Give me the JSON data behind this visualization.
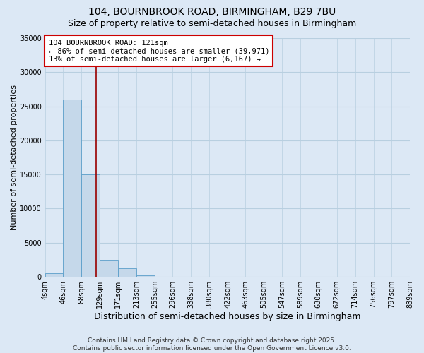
{
  "title": "104, BOURNBROOK ROAD, BIRMINGHAM, B29 7BU",
  "subtitle": "Size of property relative to semi-detached houses in Birmingham",
  "xlabel": "Distribution of semi-detached houses by size in Birmingham",
  "ylabel": "Number of semi-detached properties",
  "footer_line1": "Contains HM Land Registry data © Crown copyright and database right 2025.",
  "footer_line2": "Contains public sector information licensed under the Open Government Licence v3.0.",
  "annotation_line1": "104 BOURNBROOK ROAD: 121sqm",
  "annotation_line2": "← 86% of semi-detached houses are smaller (39,971)",
  "annotation_line3": "13% of semi-detached houses are larger (6,167) →",
  "property_size": 121,
  "bins": [
    4,
    46,
    88,
    129,
    171,
    213,
    255,
    296,
    338,
    380,
    422,
    463,
    505,
    547,
    589,
    630,
    672,
    714,
    756,
    797,
    839
  ],
  "counts": [
    500,
    26000,
    15000,
    2500,
    1200,
    200,
    50,
    20,
    10,
    5,
    3,
    2,
    1,
    1,
    0,
    0,
    0,
    0,
    0,
    0
  ],
  "bar_color": "#c5d8ea",
  "bar_edge_color": "#5a9ec9",
  "vline_color": "#990000",
  "annotation_box_color": "#cc0000",
  "ylim": [
    0,
    35000
  ],
  "yticks": [
    0,
    5000,
    10000,
    15000,
    20000,
    25000,
    30000,
    35000
  ],
  "ytick_labels": [
    "0",
    "5000",
    "10000",
    "15000",
    "20000",
    "25000",
    "30000",
    "35000"
  ],
  "bg_color": "#dce8f5",
  "plot_bg": "#dce8f5",
  "grid_color": "#b8cfe0",
  "title_fontsize": 10,
  "subtitle_fontsize": 9,
  "ylabel_fontsize": 8,
  "xlabel_fontsize": 9,
  "footer_fontsize": 6.5,
  "tick_fontsize": 7,
  "annotation_fontsize": 7.5
}
